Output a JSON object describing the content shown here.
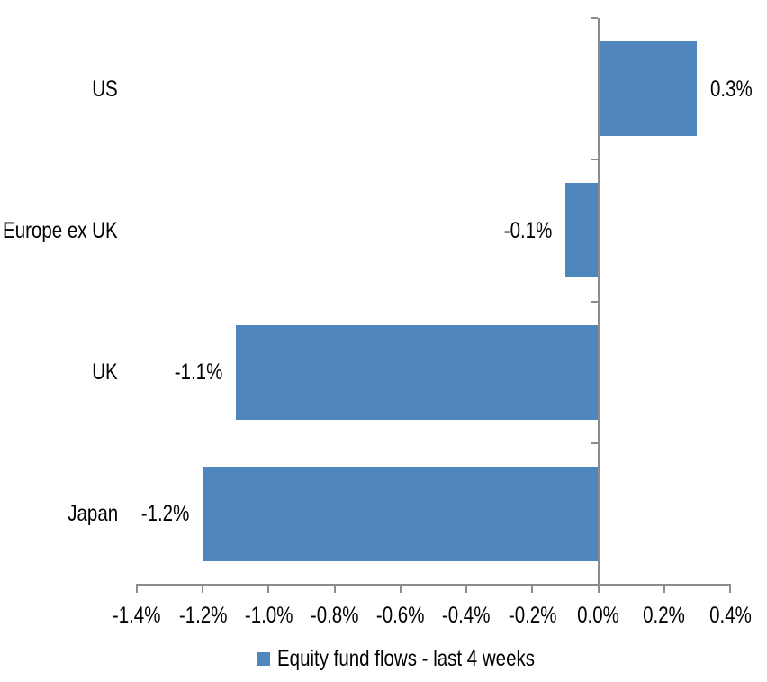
{
  "chart_data": {
    "type": "bar",
    "orientation": "horizontal",
    "title": "",
    "categories": [
      "US",
      "Europe ex UK",
      "UK",
      "Japan"
    ],
    "series": [
      {
        "name": "Equity fund flows - last 4 weeks",
        "values": [
          0.3,
          -0.1,
          -1.1,
          -1.2
        ],
        "data_labels": [
          "0.3%",
          "-0.1%",
          "-1.1%",
          "-1.2%"
        ]
      }
    ],
    "xlabel": "",
    "ylabel": "",
    "xlim": [
      -1.4,
      0.4
    ],
    "x_tick_values": [
      -1.4,
      -1.2,
      -1.0,
      -0.8,
      -0.6,
      -0.4,
      -0.2,
      0.0,
      0.2,
      0.4
    ],
    "x_tick_labels": [
      "-1.4%",
      "-1.2%",
      "-1.0%",
      "-0.8%",
      "-0.6%",
      "-0.4%",
      "-0.2%",
      "0.0%",
      "0.2%",
      "0.4%"
    ],
    "grid": false,
    "legend_position": "bottom",
    "colors": {
      "bar": "#4E86BD",
      "axis": "#8C8C8C",
      "text": "#000000",
      "background": "#FFFFFF"
    }
  }
}
